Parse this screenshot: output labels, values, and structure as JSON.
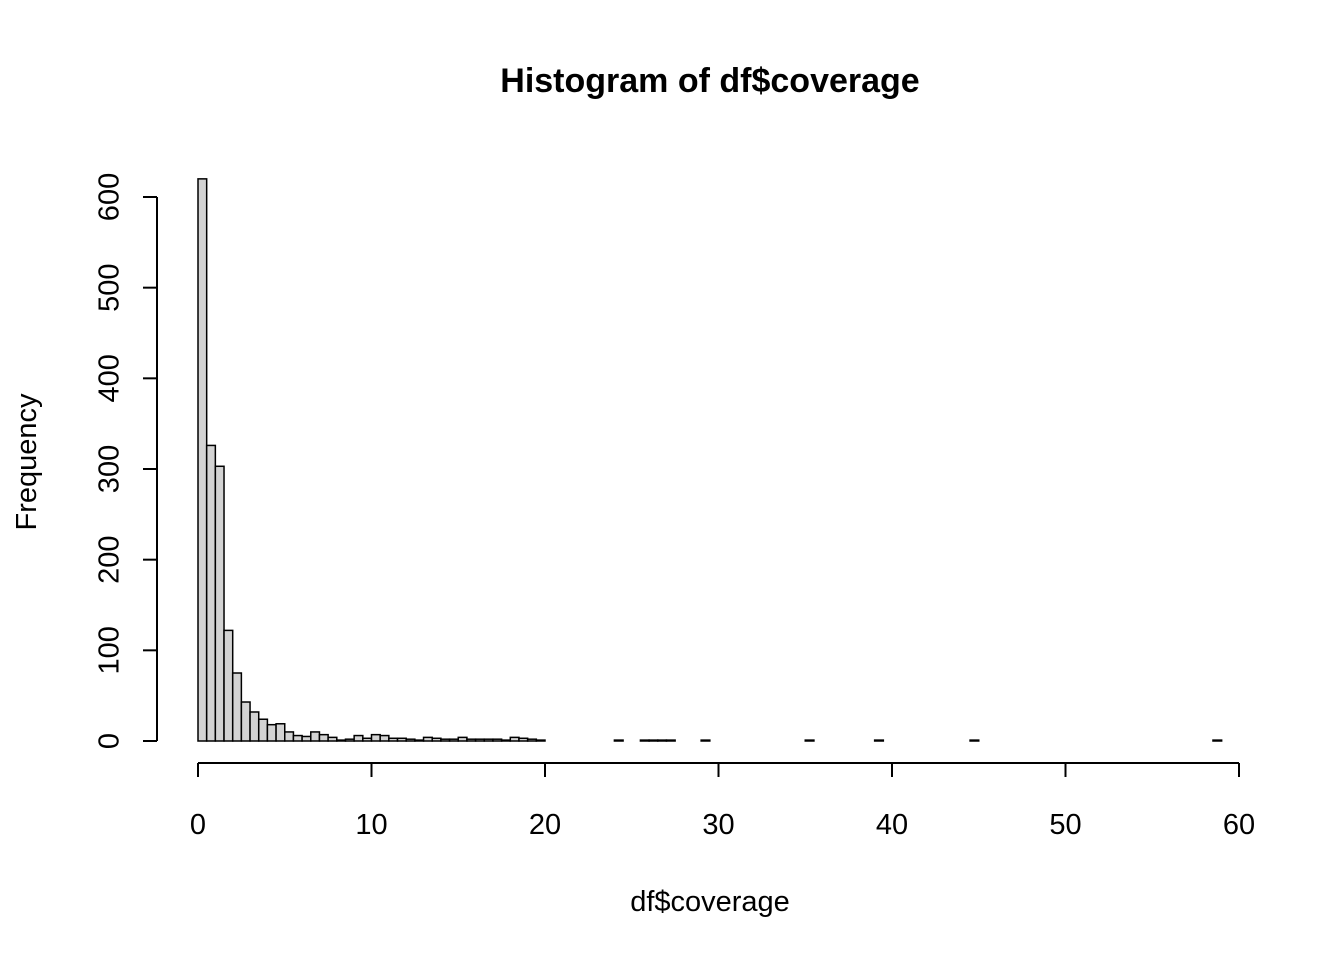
{
  "chart_data": {
    "type": "histogram",
    "title": "Histogram of df$coverage",
    "x_label": "df$coverage",
    "y_label": "Frequency",
    "bins": [
      0,
      0.5,
      1,
      1.5,
      2,
      2.5,
      3,
      3.5,
      4,
      4.5,
      5,
      5.5,
      6,
      6.5,
      7,
      7.5,
      8,
      8.5,
      9,
      9.5,
      10,
      10.5,
      11,
      11.5,
      12,
      12.5,
      13,
      13.5,
      14,
      14.5,
      15,
      15.5,
      16,
      16.5,
      17,
      17.5,
      18,
      18.5,
      19,
      19.5,
      20,
      20.5,
      21,
      21.5,
      22,
      22.5,
      23,
      23.5,
      24,
      24.5,
      25,
      25.5,
      26,
      26.5,
      27,
      27.5,
      28,
      28.5,
      29,
      29.5,
      30,
      30.5,
      31,
      31.5,
      32,
      32.5,
      33,
      33.5,
      34,
      34.5,
      35,
      35.5,
      36,
      36.5,
      37,
      37.5,
      38,
      38.5,
      39,
      39.5,
      40,
      40.5,
      41,
      41.5,
      42,
      42.5,
      43,
      43.5,
      44,
      44.5,
      45,
      45.5,
      46,
      46.5,
      47,
      47.5,
      48,
      48.5,
      49,
      49.5,
      50,
      50.5,
      51,
      51.5,
      52,
      52.5,
      53,
      53.5,
      54,
      54.5,
      55,
      55.5,
      56,
      56.5,
      57,
      57.5,
      58,
      58.5,
      59
    ],
    "values": [
      620,
      326,
      303,
      122,
      75,
      43,
      32,
      24,
      18,
      19,
      10,
      6,
      5,
      10,
      7,
      4,
      1,
      2,
      6,
      3,
      7,
      6,
      3,
      3,
      2,
      1,
      4,
      3,
      2,
      2,
      4,
      2,
      2,
      2,
      2,
      1,
      4,
      3,
      2,
      1,
      0,
      0,
      0,
      0,
      0,
      0,
      0,
      0,
      1,
      0,
      0,
      1,
      1,
      1,
      1,
      0,
      0,
      0,
      1,
      0,
      0,
      0,
      0,
      0,
      0,
      0,
      0,
      0,
      0,
      0,
      1,
      0,
      0,
      0,
      0,
      0,
      0,
      0,
      1,
      0,
      0,
      0,
      0,
      0,
      0,
      0,
      0,
      0,
      0,
      1,
      0,
      0,
      0,
      0,
      0,
      0,
      0,
      0,
      0,
      0,
      0,
      0,
      0,
      0,
      0,
      0,
      0,
      0,
      0,
      0,
      0,
      0,
      0,
      0,
      0,
      0,
      0,
      1
    ],
    "color": "#d3d3d3",
    "xlim": [
      0,
      60
    ],
    "xticks": [
      0,
      10,
      20,
      30,
      40,
      50,
      60
    ],
    "ylim": [
      0,
      620
    ],
    "yticks": [
      0,
      100,
      200,
      300,
      400,
      500,
      600
    ]
  }
}
